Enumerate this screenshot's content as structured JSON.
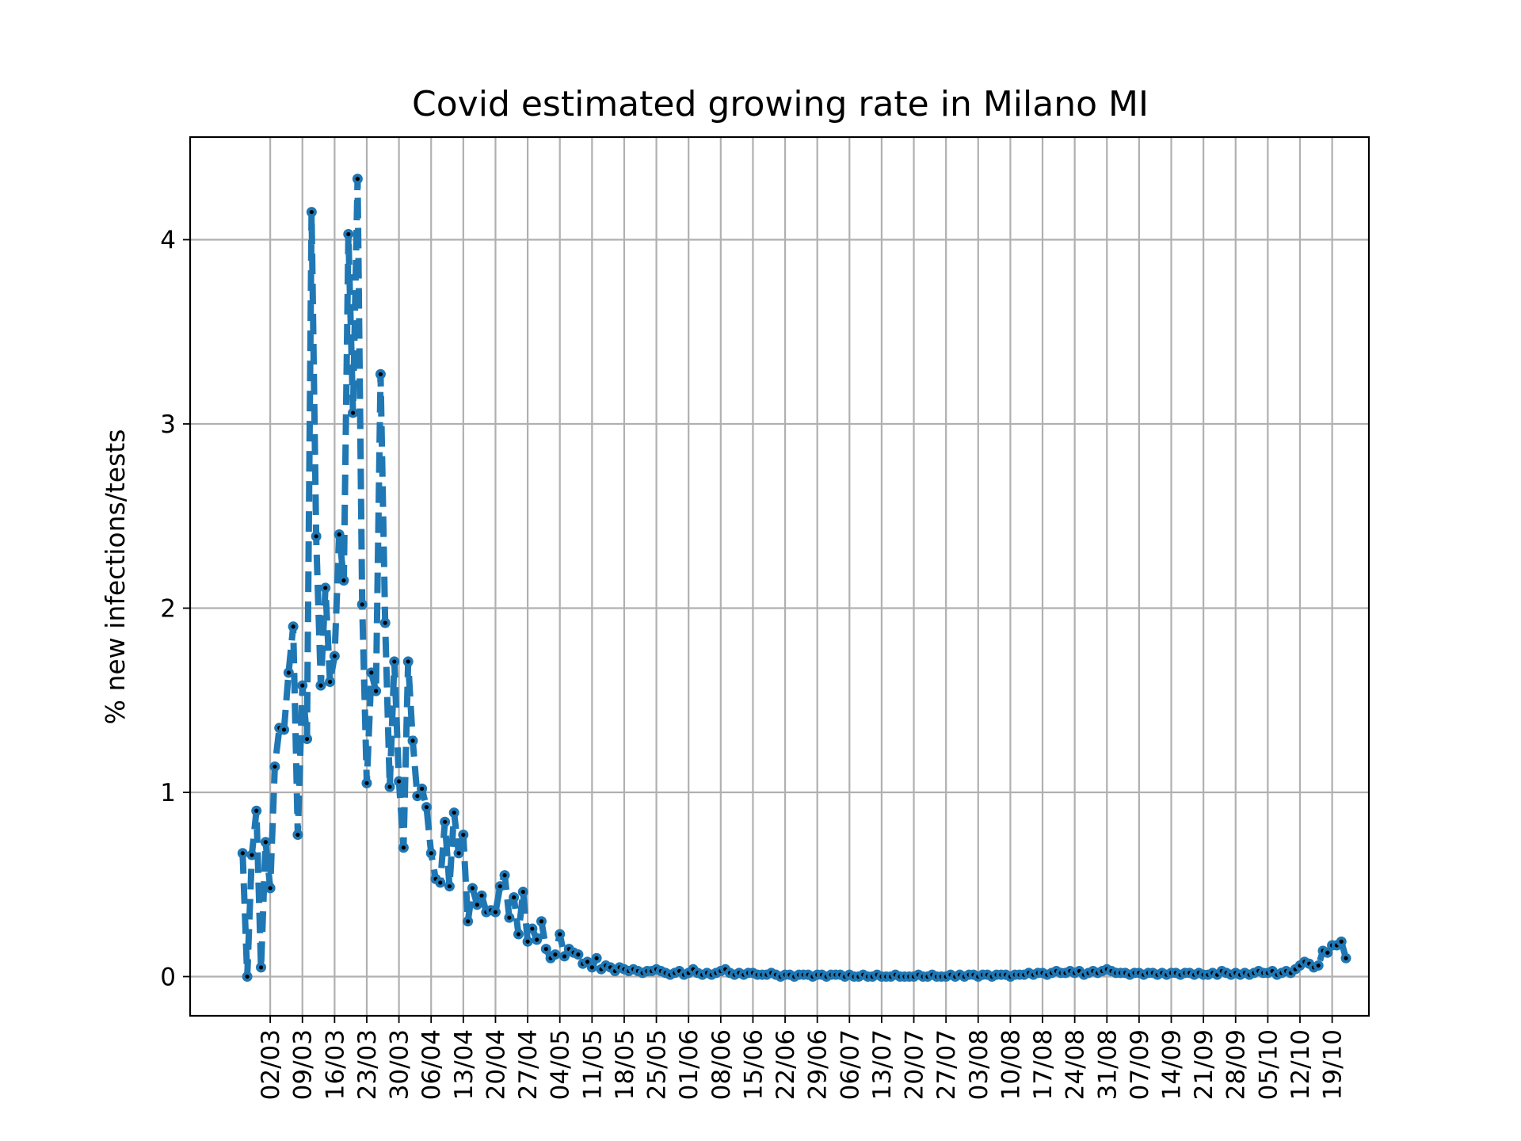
{
  "chart_data": {
    "type": "line",
    "title": "Covid estimated growing rate in Milano MI",
    "xlabel": "",
    "ylabel": "% new infections/tests",
    "start_date": "2020-02-25",
    "x_ticks": [
      "02/03",
      "09/03",
      "16/03",
      "23/03",
      "30/03",
      "06/04",
      "13/04",
      "20/04",
      "27/04",
      "04/05",
      "11/05",
      "18/05",
      "25/05",
      "01/06",
      "08/06",
      "15/06",
      "22/06",
      "29/06",
      "06/07",
      "13/07",
      "20/07",
      "27/07",
      "03/08",
      "10/08",
      "17/08",
      "24/08",
      "31/08",
      "07/09",
      "14/09",
      "21/09",
      "28/09",
      "05/10",
      "12/10",
      "19/10"
    ],
    "y_ticks": [
      "0",
      "1",
      "2",
      "3",
      "4"
    ],
    "ylim": [
      -0.21,
      4.56
    ],
    "grid": true,
    "style": {
      "line_color": "#1f77b4",
      "marker_color": "#000000",
      "line_style": "dashed",
      "marker": "dot"
    },
    "series": [
      {
        "name": "",
        "values": [
          0.67,
          0.0,
          0.66,
          0.9,
          0.05,
          0.73,
          0.48,
          1.14,
          1.35,
          1.34,
          1.65,
          1.9,
          0.77,
          1.58,
          1.29,
          4.15,
          2.39,
          1.58,
          2.11,
          1.6,
          1.74,
          2.4,
          2.15,
          4.03,
          3.06,
          4.33,
          2.02,
          1.05,
          1.65,
          1.55,
          3.27,
          1.92,
          1.03,
          1.71,
          1.06,
          0.7,
          1.71,
          1.28,
          0.98,
          1.02,
          0.92,
          0.67,
          0.53,
          0.51,
          0.84,
          0.49,
          0.89,
          0.67,
          0.77,
          0.3,
          0.48,
          0.39,
          0.44,
          0.35,
          0.36,
          0.35,
          0.49,
          0.55,
          0.32,
          0.43,
          0.23,
          0.46,
          0.19,
          0.26,
          0.2,
          0.3,
          0.15,
          0.1,
          0.12,
          0.23,
          0.11,
          0.15,
          0.13,
          0.12,
          0.07,
          0.08,
          0.05,
          0.1,
          0.04,
          0.06,
          0.05,
          0.03,
          0.05,
          0.04,
          0.03,
          0.04,
          0.03,
          0.02,
          0.03,
          0.03,
          0.04,
          0.03,
          0.02,
          0.01,
          0.02,
          0.03,
          0.01,
          0.02,
          0.04,
          0.02,
          0.01,
          0.02,
          0.01,
          0.02,
          0.03,
          0.04,
          0.02,
          0.01,
          0.02,
          0.01,
          0.02,
          0.02,
          0.01,
          0.01,
          0.01,
          0.02,
          0.01,
          0.0,
          0.01,
          0.01,
          0.0,
          0.01,
          0.01,
          0.01,
          0.0,
          0.01,
          0.01,
          0.0,
          0.01,
          0.01,
          0.01,
          0.0,
          0.01,
          0.0,
          0.0,
          0.01,
          0.0,
          0.0,
          0.01,
          0.0,
          0.0,
          0.0,
          0.01,
          0.0,
          0.0,
          0.0,
          0.0,
          0.01,
          0.0,
          0.0,
          0.01,
          0.0,
          0.0,
          0.0,
          0.01,
          0.0,
          0.01,
          0.0,
          0.01,
          0.01,
          0.0,
          0.01,
          0.01,
          0.0,
          0.01,
          0.01,
          0.01,
          0.0,
          0.01,
          0.01,
          0.01,
          0.02,
          0.01,
          0.02,
          0.02,
          0.01,
          0.02,
          0.03,
          0.02,
          0.02,
          0.03,
          0.02,
          0.03,
          0.01,
          0.02,
          0.03,
          0.02,
          0.03,
          0.04,
          0.03,
          0.02,
          0.02,
          0.02,
          0.01,
          0.02,
          0.02,
          0.01,
          0.02,
          0.02,
          0.01,
          0.02,
          0.01,
          0.02,
          0.02,
          0.01,
          0.02,
          0.02,
          0.01,
          0.02,
          0.01,
          0.01,
          0.02,
          0.01,
          0.03,
          0.02,
          0.01,
          0.02,
          0.01,
          0.02,
          0.01,
          0.02,
          0.03,
          0.02,
          0.02,
          0.03,
          0.01,
          0.02,
          0.03,
          0.02,
          0.04,
          0.06,
          0.08,
          0.07,
          0.05,
          0.06,
          0.14,
          0.13,
          0.17,
          0.17,
          0.19,
          0.1
        ]
      }
    ]
  }
}
